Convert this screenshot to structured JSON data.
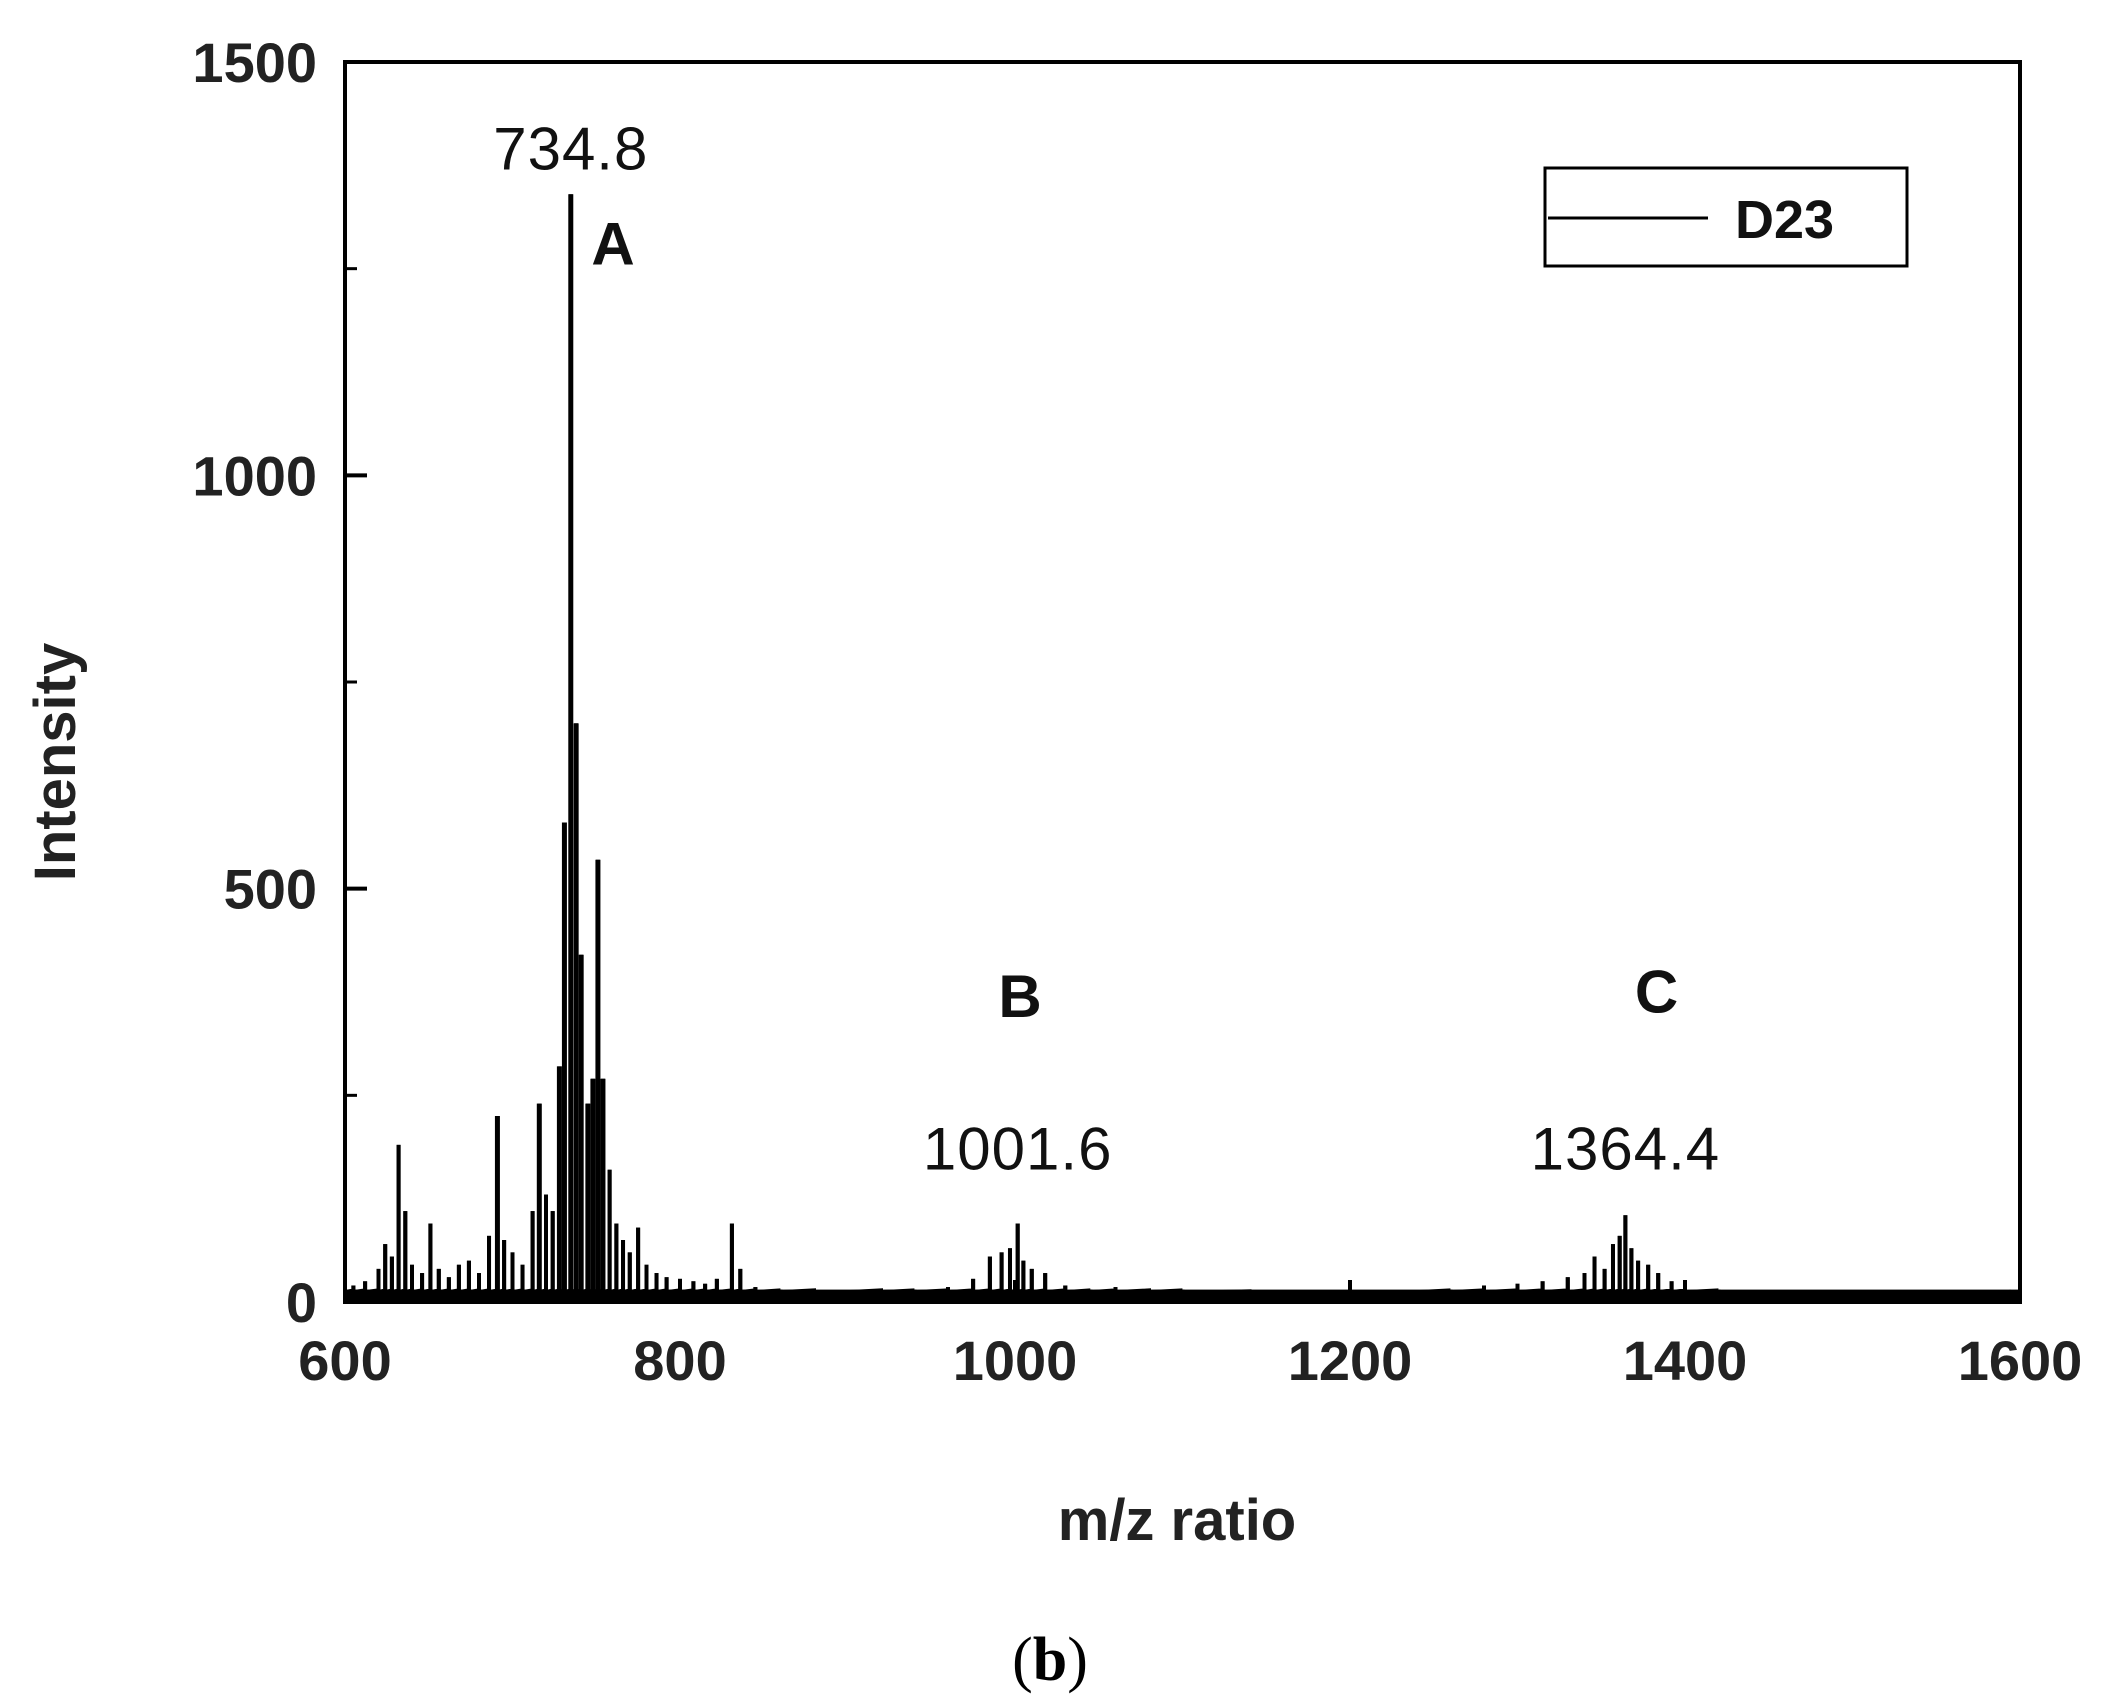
{
  "chart_data": {
    "type": "line",
    "xlabel": "m/z ratio",
    "ylabel": "Intensity",
    "xlim": [
      600,
      1600
    ],
    "ylim": [
      0,
      1500
    ],
    "x_ticks": [
      "600",
      "800",
      "1000",
      "1200",
      "1400",
      "1600"
    ],
    "y_ticks": [
      "0",
      "500",
      "1000",
      "1500"
    ],
    "legend": {
      "position": "top-right",
      "entries": [
        "D23"
      ]
    },
    "panel_label": {
      "open": "(",
      "letter": "b",
      "close": ")"
    },
    "series": [
      {
        "name": "D23",
        "color": "#000000",
        "peaks": [
          [
            605,
            20
          ],
          [
            612,
            25
          ],
          [
            620,
            40
          ],
          [
            624,
            70
          ],
          [
            628,
            55
          ],
          [
            632,
            190
          ],
          [
            636,
            110
          ],
          [
            640,
            45
          ],
          [
            646,
            35
          ],
          [
            651,
            95
          ],
          [
            656,
            40
          ],
          [
            662,
            30
          ],
          [
            668,
            45
          ],
          [
            674,
            50
          ],
          [
            680,
            35
          ],
          [
            686,
            80
          ],
          [
            691,
            225
          ],
          [
            695,
            75
          ],
          [
            700,
            60
          ],
          [
            706,
            45
          ],
          [
            712,
            110
          ],
          [
            716,
            240
          ],
          [
            720,
            130
          ],
          [
            724,
            110
          ],
          [
            728,
            285
          ],
          [
            731,
            580
          ],
          [
            734.8,
            1340
          ],
          [
            738,
            700
          ],
          [
            741,
            420
          ],
          [
            745,
            240
          ],
          [
            748,
            270
          ],
          [
            751,
            535
          ],
          [
            754,
            270
          ],
          [
            758,
            160
          ],
          [
            762,
            95
          ],
          [
            766,
            75
          ],
          [
            770,
            60
          ],
          [
            775,
            90
          ],
          [
            780,
            45
          ],
          [
            786,
            35
          ],
          [
            792,
            30
          ],
          [
            800,
            28
          ],
          [
            808,
            25
          ],
          [
            815,
            22
          ],
          [
            822,
            28
          ],
          [
            831,
            95
          ],
          [
            836,
            40
          ],
          [
            845,
            18
          ],
          [
            860,
            15
          ],
          [
            880,
            14
          ],
          [
            900,
            12
          ],
          [
            920,
            14
          ],
          [
            940,
            15
          ],
          [
            960,
            18
          ],
          [
            975,
            28
          ],
          [
            985,
            55
          ],
          [
            992,
            60
          ],
          [
            997,
            65
          ],
          [
            1001.6,
            95
          ],
          [
            1005,
            50
          ],
          [
            1010,
            40
          ],
          [
            1018,
            35
          ],
          [
            1030,
            20
          ],
          [
            1045,
            15
          ],
          [
            1060,
            18
          ],
          [
            1080,
            14
          ],
          [
            1100,
            15
          ],
          [
            1120,
            12
          ],
          [
            1140,
            13
          ],
          [
            1160,
            11
          ],
          [
            1180,
            12
          ],
          [
            1200,
            10
          ],
          [
            1220,
            11
          ],
          [
            1240,
            12
          ],
          [
            1260,
            15
          ],
          [
            1280,
            20
          ],
          [
            1300,
            22
          ],
          [
            1315,
            25
          ],
          [
            1330,
            30
          ],
          [
            1340,
            35
          ],
          [
            1346,
            55
          ],
          [
            1352,
            40
          ],
          [
            1357,
            70
          ],
          [
            1361,
            80
          ],
          [
            1364.4,
            105
          ],
          [
            1368,
            65
          ],
          [
            1372,
            50
          ],
          [
            1378,
            45
          ],
          [
            1384,
            35
          ],
          [
            1392,
            25
          ],
          [
            1400,
            20
          ],
          [
            1420,
            15
          ],
          [
            1450,
            12
          ],
          [
            1480,
            11
          ],
          [
            1520,
            10
          ],
          [
            1560,
            12
          ],
          [
            1595,
            10
          ]
        ]
      }
    ],
    "annotations": [
      {
        "text": "734.8",
        "x": 734.8,
        "y": 1370
      },
      {
        "text": "A",
        "x": 760,
        "y": 1255
      },
      {
        "text": "B",
        "x": 1003,
        "y": 345
      },
      {
        "text": "1001.6",
        "x": 1001.6,
        "y": 160
      },
      {
        "text": "C",
        "x": 1383,
        "y": 350
      },
      {
        "text": "1364.4",
        "x": 1364.4,
        "y": 160
      }
    ]
  }
}
